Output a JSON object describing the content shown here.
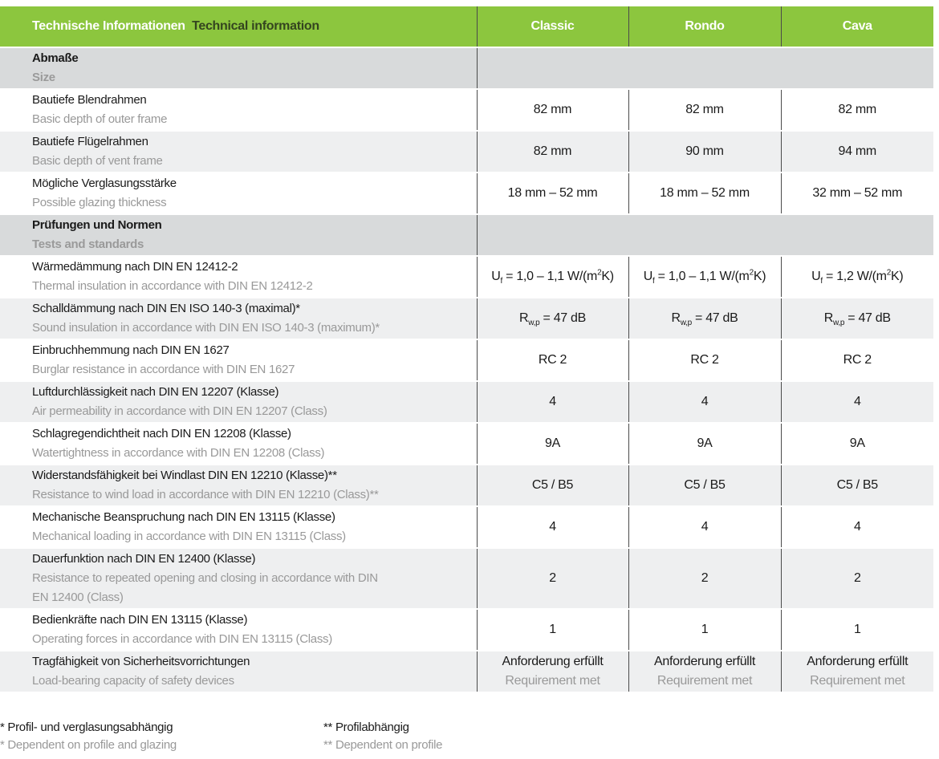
{
  "header": {
    "title_de": "Technische Informationen",
    "title_en": "Technical information",
    "columns": [
      "Classic",
      "Rondo",
      "Cava"
    ]
  },
  "rows": [
    {
      "type": "section",
      "de": "Abmaße",
      "en": "Size"
    },
    {
      "type": "row",
      "de": "Bautiefe Blendrahmen",
      "en": "Basic depth of outer frame",
      "values": [
        "82 mm",
        "82 mm",
        "82 mm"
      ]
    },
    {
      "type": "row",
      "de": "Bautiefe Flügelrahmen",
      "en": "Basic depth of vent frame",
      "values": [
        "82 mm",
        "90 mm",
        "94 mm"
      ]
    },
    {
      "type": "row",
      "de": "Mögliche Verglasungsstärke",
      "en": "Possible glazing thickness",
      "values": [
        "18 mm – 52 mm",
        "18 mm – 52 mm",
        "32 mm – 52 mm"
      ]
    },
    {
      "type": "section",
      "de": "Prüfungen und Normen",
      "en": "Tests and standards"
    },
    {
      "type": "row",
      "de": "Wärmedämmung nach DIN EN 12412-2",
      "en": "Thermal insulation in accordance with DIN EN 12412-2",
      "values": [
        [
          {
            "text": "U"
          },
          {
            "text": "f",
            "style": "sub"
          },
          {
            "text": " = 1,0 – 1,1 W/(m"
          },
          {
            "text": "2",
            "style": "sup"
          },
          {
            "text": "K)"
          }
        ],
        [
          {
            "text": "U"
          },
          {
            "text": "f",
            "style": "sub"
          },
          {
            "text": " = 1,0 – 1,1 W/(m"
          },
          {
            "text": "2",
            "style": "sup"
          },
          {
            "text": "K)"
          }
        ],
        [
          {
            "text": "U"
          },
          {
            "text": "f",
            "style": "sub"
          },
          {
            "text": " = 1,2 W/(m"
          },
          {
            "text": "2",
            "style": "sup"
          },
          {
            "text": "K)"
          }
        ]
      ]
    },
    {
      "type": "row",
      "de": "Schalldämmung nach DIN EN ISO 140-3 (maximal)*",
      "en": "Sound insulation in accordance with DIN EN ISO 140-3 (maximum)*",
      "values": [
        [
          {
            "text": "R"
          },
          {
            "text": "w,p",
            "style": "sub"
          },
          {
            "text": " = 47 dB"
          }
        ],
        [
          {
            "text": "R"
          },
          {
            "text": "w,p",
            "style": "sub"
          },
          {
            "text": " = 47 dB"
          }
        ],
        [
          {
            "text": "R"
          },
          {
            "text": "w,p",
            "style": "sub"
          },
          {
            "text": " = 47 dB"
          }
        ]
      ]
    },
    {
      "type": "row",
      "de": "Einbruchhemmung nach DIN EN 1627",
      "en": "Burglar resistance in accordance with DIN EN 1627",
      "values": [
        "RC 2",
        "RC 2",
        "RC 2"
      ]
    },
    {
      "type": "row",
      "de": "Luftdurchlässigkeit nach DIN EN 12207 (Klasse)",
      "en": "Air permeability in accordance with DIN EN 12207 (Class)",
      "values": [
        "4",
        "4",
        "4"
      ]
    },
    {
      "type": "row",
      "de": "Schlagregendichtheit nach DIN EN 12208 (Klasse)",
      "en": "Watertightness in accordance with DIN EN 12208 (Class)",
      "values": [
        "9A",
        "9A",
        "9A"
      ]
    },
    {
      "type": "row",
      "de": "Widerstandsfähigkeit bei Windlast DIN EN 12210 (Klasse)**",
      "en": "Resistance to wind load in accordance with DIN EN 12210 (Class)**",
      "values": [
        "C5 / B5",
        "C5 / B5",
        "C5 / B5"
      ]
    },
    {
      "type": "row",
      "de": "Mechanische Beanspruchung nach DIN EN 13115 (Klasse)",
      "en": "Mechanical loading in accordance with DIN EN 13115 (Class)",
      "values": [
        "4",
        "4",
        "4"
      ]
    },
    {
      "type": "row",
      "de": "Dauerfunktion nach DIN EN 12400 (Klasse)",
      "en": "Resistance to repeated opening and closing in accordance with DIN EN 12400 (Class)",
      "values": [
        "2",
        "2",
        "2"
      ]
    },
    {
      "type": "row",
      "de": "Bedienkräfte nach DIN EN 13115 (Klasse)",
      "en": "Operating forces in accordance with DIN EN 13115 (Class)",
      "values": [
        "1",
        "1",
        "1"
      ]
    },
    {
      "type": "row",
      "de": "Tragfähigkeit von Sicherheitsvorrichtungen",
      "en": "Load-bearing capacity of safety devices",
      "values": [
        {
          "de": "Anforderung erfüllt",
          "en": "Requirement met"
        },
        {
          "de": "Anforderung erfüllt",
          "en": "Requirement met"
        },
        {
          "de": "Anforderung erfüllt",
          "en": "Requirement met"
        }
      ]
    }
  ],
  "footnotes": [
    {
      "de": "* Profil- und verglasungsabhängig",
      "en": "* Dependent on profile and glazing"
    },
    {
      "de": "** Profilabhängig",
      "en": "** Dependent on profile"
    }
  ]
}
